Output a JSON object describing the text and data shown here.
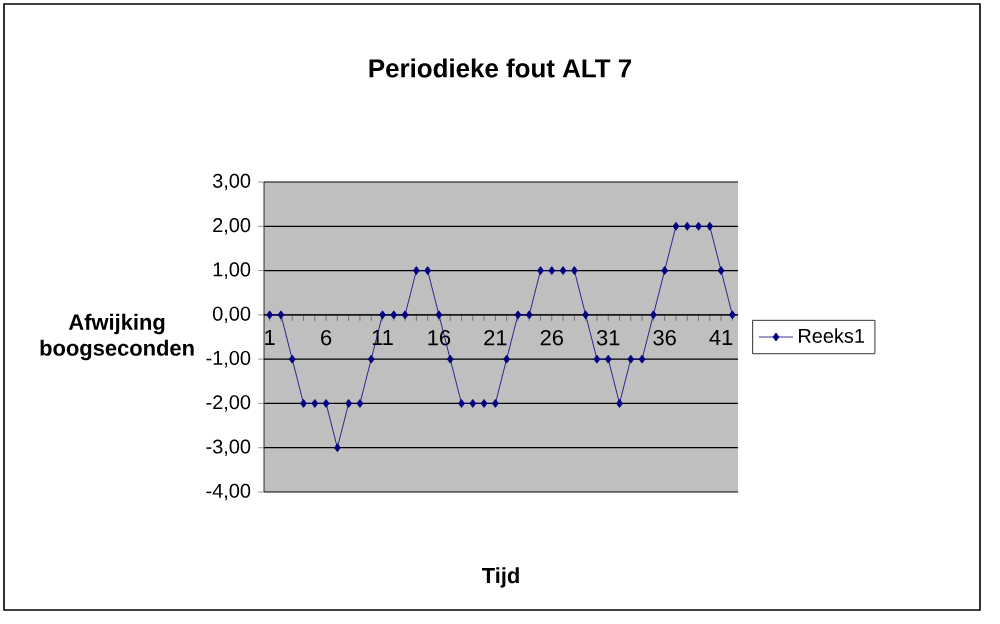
{
  "chart_data": {
    "type": "line",
    "title": "Periodieke fout ALT 7",
    "xlabel": "Tijd",
    "ylabel": "Afwijking\nboogseconden",
    "categories": [
      "1",
      null,
      null,
      null,
      null,
      "6",
      null,
      null,
      null,
      null,
      "11",
      null,
      null,
      null,
      null,
      "16",
      null,
      null,
      null,
      null,
      "21",
      null,
      null,
      null,
      null,
      "26",
      null,
      null,
      null,
      null,
      "31",
      null,
      null,
      null,
      null,
      "36",
      null,
      null,
      null,
      null,
      "41",
      null
    ],
    "series": [
      {
        "name": "Reeks1",
        "color": "#000080",
        "values": [
          0,
          0,
          -1,
          -2,
          -2,
          -2,
          -3,
          -2,
          -2,
          -1,
          0,
          0,
          0,
          1,
          1,
          0,
          -1,
          -2,
          -2,
          -2,
          -2,
          -1,
          0,
          0,
          1,
          1,
          1,
          1,
          0,
          -1,
          -1,
          -2,
          -1,
          -1,
          0,
          1,
          2,
          2,
          2,
          2,
          1,
          0
        ]
      }
    ],
    "ylim": [
      -4,
      3
    ],
    "yticks": [
      {
        "value": -4,
        "label": "-4,00"
      },
      {
        "value": -3,
        "label": "-3,00"
      },
      {
        "value": -2,
        "label": "-2,00"
      },
      {
        "value": -1,
        "label": "-1,00"
      },
      {
        "value": 0,
        "label": "0,00"
      },
      {
        "value": 1,
        "label": "1,00"
      },
      {
        "value": 2,
        "label": "2,00"
      },
      {
        "value": 3,
        "label": "3,00"
      }
    ],
    "grid": "y",
    "legend": "right",
    "marker": "diamond",
    "line_style": "solid"
  }
}
